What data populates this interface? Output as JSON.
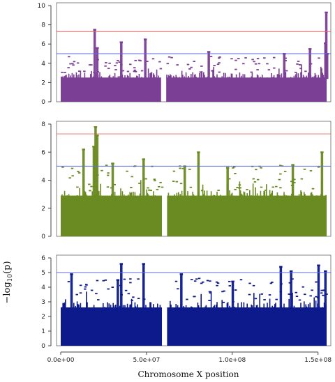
{
  "chart_data": [
    {
      "type": "scatter",
      "name_hint": "panel-1",
      "color": "#7b3f96",
      "x_range": [
        0,
        155000000
      ],
      "ylim": [
        0,
        10
      ],
      "yticks": [
        "0",
        "2",
        "4",
        "6",
        "8",
        "10"
      ],
      "threshold_lines": [
        {
          "value": 7.3,
          "color": "#e8645a"
        },
        {
          "value": 5.0,
          "color": "#5b6be0"
        }
      ],
      "gap": [
        58500000,
        61500000
      ],
      "background_max": 3.1,
      "peaks": [
        {
          "x": 19500000,
          "y": 7.5
        },
        {
          "x": 21000000,
          "y": 5.6
        },
        {
          "x": 35000000,
          "y": 6.2
        },
        {
          "x": 49000000,
          "y": 6.5
        },
        {
          "x": 86000000,
          "y": 5.2
        },
        {
          "x": 154500000,
          "y": 9.3
        },
        {
          "x": 154000000,
          "y": 6.1
        },
        {
          "x": 155000000,
          "y": 5.0
        },
        {
          "x": 145000000,
          "y": 5.5
        },
        {
          "x": 130000000,
          "y": 5.0
        }
      ]
    },
    {
      "type": "scatter",
      "name_hint": "panel-2",
      "color": "#6a8a22",
      "x_range": [
        0,
        155000000
      ],
      "ylim": [
        0,
        8
      ],
      "yticks": [
        "0",
        "2",
        "4",
        "6",
        "8"
      ],
      "threshold_lines": [
        {
          "value": 7.3,
          "color": "#e8645a"
        },
        {
          "value": 5.0,
          "color": "#5b6be0"
        }
      ],
      "gap": [
        59000000,
        62000000
      ],
      "background_max": 3.3,
      "peaks": [
        {
          "x": 20000000,
          "y": 7.8
        },
        {
          "x": 19000000,
          "y": 6.4
        },
        {
          "x": 21000000,
          "y": 7.2
        },
        {
          "x": 13000000,
          "y": 6.2
        },
        {
          "x": 30000000,
          "y": 5.2
        },
        {
          "x": 48000000,
          "y": 5.5
        },
        {
          "x": 80000000,
          "y": 6.0
        },
        {
          "x": 72000000,
          "y": 5.0
        },
        {
          "x": 135000000,
          "y": 5.1
        },
        {
          "x": 152000000,
          "y": 6.0
        },
        {
          "x": 97000000,
          "y": 4.9
        }
      ]
    },
    {
      "type": "scatter",
      "name_hint": "panel-3",
      "color": "#0c1a8c",
      "x_range": [
        0,
        155000000
      ],
      "ylim": [
        0,
        6
      ],
      "yticks": [
        "0",
        "1",
        "2",
        "3",
        "4",
        "5",
        "6"
      ],
      "threshold_lines": [
        {
          "value": 5.0,
          "color": "#5b6be0"
        }
      ],
      "gap": [
        59000000,
        62000000
      ],
      "background_max": 3.0,
      "peaks": [
        {
          "x": 6000000,
          "y": 4.9
        },
        {
          "x": 35000000,
          "y": 5.6
        },
        {
          "x": 48000000,
          "y": 5.6
        },
        {
          "x": 70000000,
          "y": 4.9
        },
        {
          "x": 128000000,
          "y": 5.4
        },
        {
          "x": 134000000,
          "y": 5.1
        },
        {
          "x": 150000000,
          "y": 5.5
        },
        {
          "x": 154000000,
          "y": 5.1
        },
        {
          "x": 33000000,
          "y": 4.5
        },
        {
          "x": 100000000,
          "y": 4.4
        }
      ]
    }
  ],
  "x_axis": {
    "label": "Chromosome X position",
    "ticks": [
      {
        "value": 0,
        "label": "0.0e+00"
      },
      {
        "value": 50000000,
        "label": "5.0e+07"
      },
      {
        "value": 100000000,
        "label": "1.0e+08"
      },
      {
        "value": 150000000,
        "label": "1.5e+08"
      }
    ]
  },
  "y_axis": {
    "label_prefix": "−log",
    "label_sub": "10",
    "label_suffix": "(p)"
  }
}
